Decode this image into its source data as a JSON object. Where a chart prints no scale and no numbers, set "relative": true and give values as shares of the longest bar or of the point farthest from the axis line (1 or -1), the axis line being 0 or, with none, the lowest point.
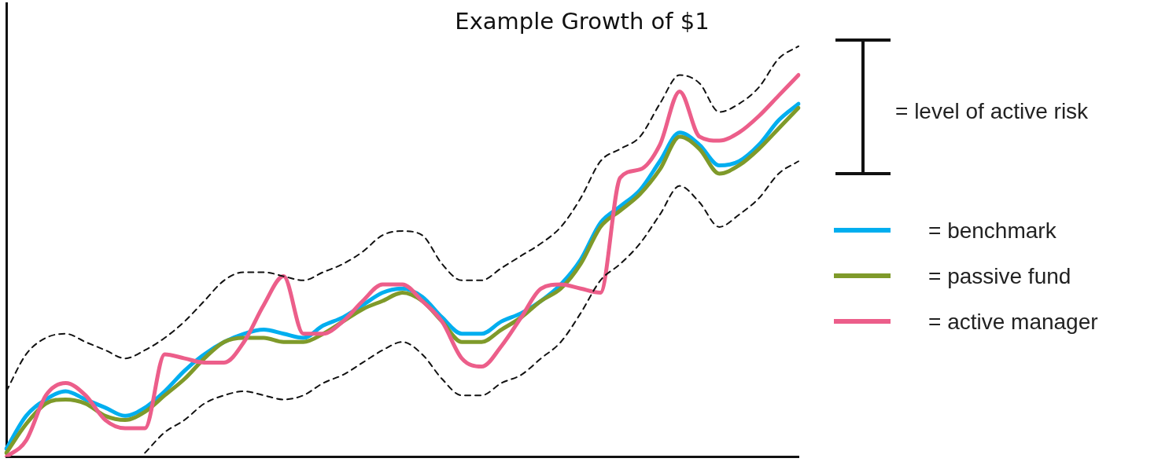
{
  "chart_data": {
    "type": "line",
    "title": "Example Growth of $1",
    "relative": true,
    "grid": false,
    "legend": "right",
    "marker": "none",
    "line_style": "solid",
    "categories": [
      null,
      null,
      null,
      null,
      null,
      null,
      null,
      null,
      null,
      null,
      null,
      null,
      null,
      null,
      null,
      null,
      null,
      null,
      null,
      null,
      null,
      null,
      null,
      null,
      null,
      null,
      null,
      null,
      null,
      null,
      null,
      null,
      null,
      null,
      null,
      null,
      null,
      null,
      null,
      null,
      null
    ],
    "series": [
      {
        "name": "= benchmark",
        "color": "#00aeef",
        "values": [
          0.02,
          0.1,
          0.14,
          0.16,
          0.14,
          0.12,
          0.1,
          0.12,
          0.16,
          0.21,
          0.25,
          0.28,
          0.3,
          0.31,
          0.3,
          0.29,
          0.32,
          0.34,
          0.37,
          0.4,
          0.41,
          0.39,
          0.34,
          0.3,
          0.3,
          0.33,
          0.35,
          0.38,
          0.42,
          0.48,
          0.57,
          0.61,
          0.65,
          0.72,
          0.79,
          0.76,
          0.71,
          0.72,
          0.76,
          0.82,
          0.86
        ]
      },
      {
        "name": "= passive fund",
        "color": "#7f9a2a",
        "values": [
          0.01,
          0.08,
          0.13,
          0.14,
          0.13,
          0.1,
          0.09,
          0.11,
          0.15,
          0.19,
          0.24,
          0.28,
          0.29,
          0.29,
          0.28,
          0.28,
          0.3,
          0.33,
          0.36,
          0.38,
          0.4,
          0.38,
          0.33,
          0.28,
          0.28,
          0.31,
          0.34,
          0.38,
          0.41,
          0.47,
          0.56,
          0.6,
          0.64,
          0.7,
          0.78,
          0.75,
          0.69,
          0.71,
          0.75,
          0.8,
          0.85
        ]
      },
      {
        "name": "= active manager",
        "color": "#ec5e8a",
        "values": [
          0.0,
          0.04,
          0.15,
          0.18,
          0.15,
          0.09,
          0.07,
          0.07,
          0.25,
          0.24,
          0.23,
          0.23,
          0.28,
          0.37,
          0.44,
          0.3,
          0.3,
          0.33,
          0.38,
          0.42,
          0.42,
          0.38,
          0.33,
          0.24,
          0.22,
          0.27,
          0.34,
          0.41,
          0.42,
          0.41,
          0.4,
          0.68,
          0.7,
          0.76,
          0.89,
          0.78,
          0.77,
          0.79,
          0.83,
          0.88,
          0.93
        ]
      },
      {
        "color": "#111111",
        "line_style": "dashed",
        "values": [
          0.16,
          0.25,
          0.29,
          0.3,
          0.28,
          0.26,
          0.24,
          0.26,
          0.29,
          0.33,
          0.38,
          0.43,
          0.45,
          0.45,
          0.44,
          0.43,
          0.45,
          0.47,
          0.5,
          0.54,
          0.55,
          0.54,
          0.47,
          0.43,
          0.43,
          0.46,
          0.49,
          0.52,
          0.56,
          0.63,
          0.72,
          0.75,
          0.78,
          0.86,
          0.93,
          0.91,
          0.84,
          0.86,
          0.9,
          0.97,
          1.0
        ]
      },
      {
        "color": "#111111",
        "line_style": "dashed",
        "values": [
          null,
          null,
          null,
          null,
          null,
          null,
          null,
          0.01,
          0.06,
          0.09,
          0.13,
          0.15,
          0.16,
          0.15,
          0.14,
          0.15,
          0.18,
          0.2,
          0.23,
          0.26,
          0.28,
          0.25,
          0.19,
          0.15,
          0.15,
          0.18,
          0.2,
          0.24,
          0.28,
          0.35,
          0.43,
          0.47,
          0.52,
          0.59,
          0.66,
          0.62,
          0.56,
          0.59,
          0.63,
          0.69,
          0.72
        ]
      }
    ],
    "annotations": [
      "= level of active risk"
    ]
  }
}
